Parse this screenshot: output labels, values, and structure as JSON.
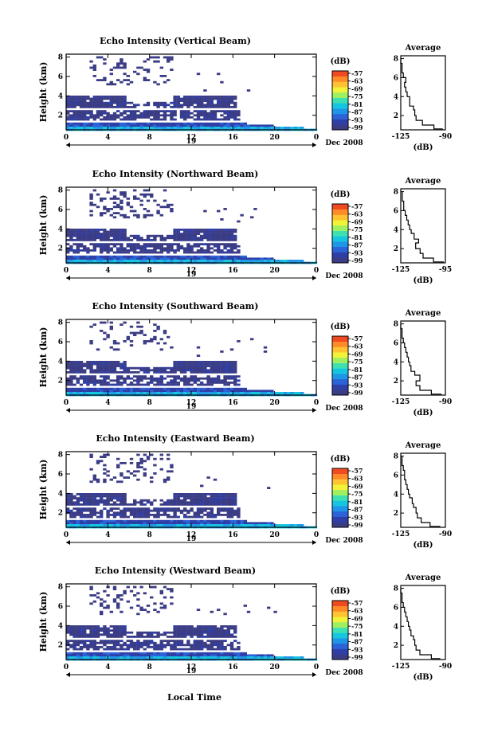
{
  "figure": {
    "x_axis_label": "Local Time",
    "date_label": "Dec 2008",
    "day_label": "19",
    "colorbar_unit": "(dB)",
    "colorbar_ticks": [
      "-57",
      "-63",
      "-69",
      "-75",
      "-81",
      "-87",
      "-93",
      "-99"
    ],
    "colormap": [
      "#3b3c86",
      "#2f3fa8",
      "#2b63d8",
      "#1f95e8",
      "#14c6e0",
      "#3fe0b0",
      "#9ff060",
      "#f2f23a",
      "#ffc230",
      "#ff8a28",
      "#f04a20"
    ]
  },
  "chart_data": [
    {
      "type": "heatmap",
      "title": "Echo Intensity (Vertical Beam)",
      "ylabel": "Height (km)",
      "xlabel": "Local Time",
      "x_ticks": [
        "0",
        "4",
        "8",
        "12",
        "16",
        "20",
        "0"
      ],
      "y_ticks": [
        "2",
        "4",
        "6",
        "8"
      ],
      "xlim": [
        0,
        24
      ],
      "ylim": [
        0.5,
        8.3
      ],
      "zlim": [
        -99,
        -57
      ],
      "profile": {
        "title": "Average",
        "xlabel": "(dB)",
        "x_ticks": [
          "-125",
          "-90"
        ],
        "xlim": [
          -125,
          -90
        ],
        "heights": [
          0.6,
          1.0,
          1.5,
          2.0,
          2.6,
          3.0,
          3.6,
          4.0,
          4.5,
          5.0,
          5.5,
          6.0,
          6.5,
          7.0,
          7.5,
          8.0
        ],
        "values": [
          -92,
          -99,
          -108,
          -113,
          -114,
          -115,
          -118,
          -118,
          -120,
          -121,
          -122,
          -121,
          -123,
          -124,
          -124,
          -125
        ]
      }
    },
    {
      "type": "heatmap",
      "title": "Echo Intensity (Northward Beam)",
      "ylabel": "Height (km)",
      "xlabel": "Local Time",
      "x_ticks": [
        "0",
        "4",
        "8",
        "12",
        "16",
        "20",
        "0"
      ],
      "y_ticks": [
        "2",
        "4",
        "6",
        "8"
      ],
      "xlim": [
        0,
        24
      ],
      "ylim": [
        0.5,
        8.3
      ],
      "zlim": [
        -99,
        -57
      ],
      "profile": {
        "title": "Average",
        "xlabel": "(dB)",
        "x_ticks": [
          "-125",
          "-95"
        ],
        "xlim": [
          -125,
          -95
        ],
        "heights": [
          0.6,
          1.0,
          1.5,
          2.0,
          2.6,
          3.0,
          3.6,
          4.0,
          4.5,
          5.0,
          5.5,
          6.0,
          6.5,
          7.0,
          7.5,
          8.0
        ],
        "values": [
          -96,
          -103,
          -110,
          -112,
          -115,
          -113,
          -116,
          -118,
          -119,
          -120,
          -121,
          -122,
          -123,
          -123,
          -124,
          -124
        ]
      }
    },
    {
      "type": "heatmap",
      "title": "Echo Intensity (Southward Beam)",
      "ylabel": "Height (km)",
      "xlabel": "Local Time",
      "x_ticks": [
        "0",
        "4",
        "8",
        "12",
        "16",
        "20",
        "0"
      ],
      "y_ticks": [
        "2",
        "4",
        "6",
        "8"
      ],
      "xlim": [
        0,
        24
      ],
      "ylim": [
        0.5,
        8.3
      ],
      "zlim": [
        -99,
        -57
      ],
      "profile": {
        "title": "Average",
        "xlabel": "(dB)",
        "x_ticks": [
          "-125",
          "-90"
        ],
        "xlim": [
          -125,
          -90
        ],
        "heights": [
          0.6,
          1.0,
          1.5,
          2.0,
          2.6,
          3.0,
          3.6,
          4.0,
          4.5,
          5.0,
          5.5,
          6.0,
          6.5,
          7.0,
          7.5,
          8.0
        ],
        "values": [
          -93,
          -101,
          -110,
          -113,
          -110,
          -114,
          -117,
          -118,
          -119,
          -120,
          -121,
          -122,
          -123,
          -124,
          -124,
          -125
        ]
      }
    },
    {
      "type": "heatmap",
      "title": "Echo Intensity (Eastward Beam)",
      "ylabel": "Height (km)",
      "xlabel": "Local Time",
      "x_ticks": [
        "0",
        "4",
        "8",
        "12",
        "16",
        "20",
        "0"
      ],
      "y_ticks": [
        "2",
        "4",
        "6",
        "8"
      ],
      "xlim": [
        0,
        24
      ],
      "ylim": [
        0.5,
        8.3
      ],
      "zlim": [
        -99,
        -57
      ],
      "profile": {
        "title": "Average",
        "xlabel": "(dB)",
        "x_ticks": [
          "-125",
          "-90"
        ],
        "xlim": [
          -125,
          -90
        ],
        "heights": [
          0.6,
          1.0,
          1.5,
          2.0,
          2.6,
          3.0,
          3.6,
          4.0,
          4.5,
          5.0,
          5.5,
          6.0,
          6.5,
          7.0,
          7.5,
          8.0
        ],
        "values": [
          -94,
          -102,
          -109,
          -112,
          -113,
          -115,
          -116,
          -118,
          -119,
          -120,
          -121,
          -122,
          -122,
          -123,
          -124,
          -124
        ]
      }
    },
    {
      "type": "heatmap",
      "title": "Echo Intensity (Westward Beam)",
      "ylabel": "Height (km)",
      "xlabel": "Local Time",
      "x_ticks": [
        "0",
        "4",
        "8",
        "12",
        "16",
        "20",
        "0"
      ],
      "y_ticks": [
        "2",
        "4",
        "6",
        "8"
      ],
      "xlim": [
        0,
        24
      ],
      "ylim": [
        0.5,
        8.3
      ],
      "zlim": [
        -99,
        -57
      ],
      "profile": {
        "title": "Average",
        "xlabel": "(dB)",
        "x_ticks": [
          "-125",
          "-90"
        ],
        "xlim": [
          -125,
          -90
        ],
        "heights": [
          0.6,
          1.0,
          1.5,
          2.0,
          2.6,
          3.0,
          3.6,
          4.0,
          4.5,
          5.0,
          5.5,
          6.0,
          6.5,
          7.0,
          7.5,
          8.0
        ],
        "values": [
          -94,
          -101,
          -110,
          -113,
          -114,
          -115,
          -117,
          -118,
          -119,
          -120,
          -121,
          -122,
          -123,
          -124,
          -124,
          -125
        ]
      }
    }
  ]
}
